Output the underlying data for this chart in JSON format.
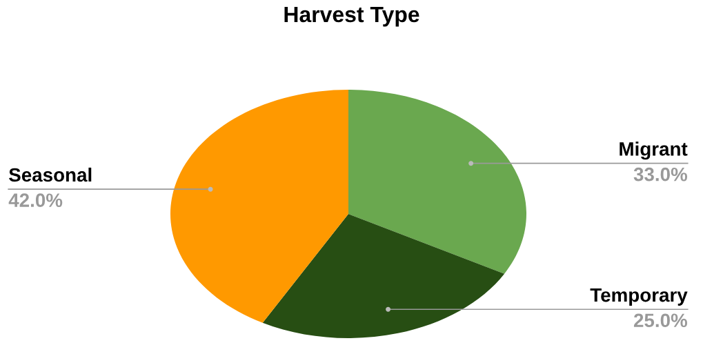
{
  "chart_data": {
    "type": "pie",
    "title": "Harvest Type",
    "categories": [
      "Migrant",
      "Temporary",
      "Seasonal"
    ],
    "values": [
      33,
      25,
      42
    ],
    "colors": [
      "#6aa84f",
      "#274e13",
      "#ff9900"
    ],
    "value_labels": [
      "33.0%",
      "25.0%",
      "42.0%"
    ]
  }
}
